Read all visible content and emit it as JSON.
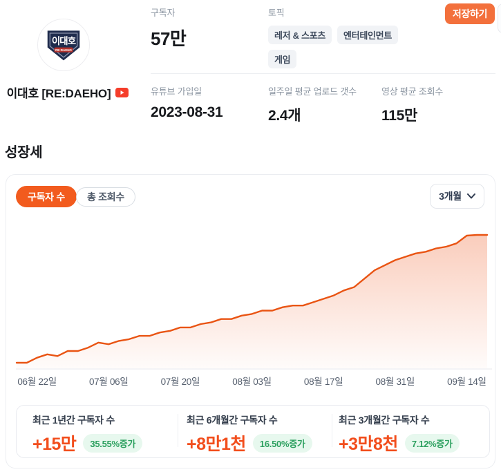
{
  "header": {
    "channel_name": "이대호 [RE:DAEHO]",
    "avatar": {
      "line1": "이대호",
      "line2": "RE:DAEHO"
    },
    "subscribers": {
      "label": "구독자",
      "value": "57만"
    },
    "topics": {
      "label": "토픽",
      "tags": [
        "레저 & 스포츠",
        "엔터테인먼트",
        "게임"
      ]
    },
    "save_button": "저장하기",
    "joined": {
      "label": "유튜브 가입일",
      "value": "2023-08-31"
    },
    "weekly_uploads": {
      "label": "일주일 평균 업로드 갯수",
      "value": "2.4개"
    },
    "avg_views": {
      "label": "영상 평균 조회수",
      "value": "115만"
    }
  },
  "growth": {
    "title": "성장세",
    "tabs": [
      {
        "label": "구독자 수",
        "active": true
      },
      {
        "label": "총 조회수",
        "active": false
      }
    ],
    "period_select": "3개월",
    "stats": [
      {
        "label": "최근 1년간 구독자 수",
        "value": "+15만",
        "change": "35.55%증가"
      },
      {
        "label": "최근 6개월간 구독자 수",
        "value": "+8만1천",
        "change": "16.50%증가"
      },
      {
        "label": "최근 3개월간 구독자 수",
        "value": "+3만8천",
        "change": "7.12%증가"
      }
    ]
  },
  "chart_data": {
    "type": "area",
    "title": "성장세 - 구독자 수 (3개월)",
    "legend": "none",
    "grid": false,
    "line_color": "#e95413",
    "x_tick_labels": [
      "06월 22일",
      "07월 06일",
      "07월 20일",
      "08월 03일",
      "08월 17일",
      "08월 31일",
      "09월 14일"
    ],
    "ylim": [
      532000,
      570000
    ],
    "series": [
      {
        "name": "구독자 수",
        "x_dates": [
          "06-18",
          "06-20",
          "06-22",
          "06-24",
          "06-26",
          "06-28",
          "06-30",
          "07-02",
          "07-04",
          "07-06",
          "07-08",
          "07-10",
          "07-12",
          "07-14",
          "07-16",
          "07-18",
          "07-20",
          "07-22",
          "07-24",
          "07-26",
          "07-28",
          "07-30",
          "08-01",
          "08-03",
          "08-05",
          "08-07",
          "08-09",
          "08-11",
          "08-13",
          "08-15",
          "08-17",
          "08-19",
          "08-21",
          "08-23",
          "08-25",
          "08-27",
          "08-29",
          "08-31",
          "09-02",
          "09-04",
          "09-06",
          "09-08",
          "09-10",
          "09-12",
          "09-14",
          "09-16",
          "09-18"
        ],
        "values": [
          532000,
          532000,
          533500,
          534500,
          534000,
          535500,
          535500,
          536500,
          538000,
          537500,
          538500,
          539000,
          540000,
          540000,
          541000,
          541500,
          542500,
          542500,
          543500,
          544000,
          545000,
          545000,
          546000,
          546500,
          547500,
          547500,
          548500,
          549000,
          549000,
          550000,
          551000,
          552000,
          553500,
          554500,
          557000,
          559500,
          561000,
          562500,
          563500,
          564500,
          565000,
          566000,
          566500,
          567500,
          569800,
          570000,
          570000
        ]
      }
    ]
  },
  "colors": {
    "accent_orange": "#f25b1e",
    "button_orange": "#f3703c",
    "value_orange": "#f24e1d",
    "line_orange": "#e95413",
    "badge_green_text": "#2ca05f",
    "badge_green_bg": "#e7f8ee"
  }
}
